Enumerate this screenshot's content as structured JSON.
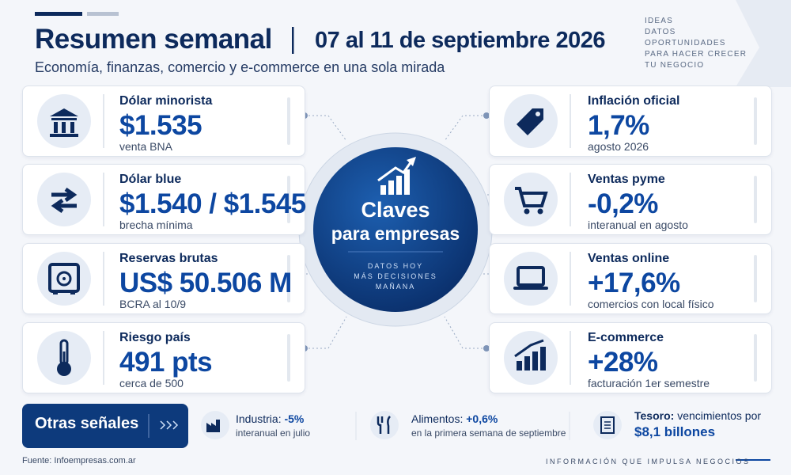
{
  "header": {
    "title": "Resumen semanal",
    "date": "07 al 11 de septiembre 2026",
    "subtitle": "Economía, finanzas, comercio y e-commerce en una sola mirada",
    "tagline": [
      "IDEAS",
      "DATOS",
      "OPORTUNIDADES",
      "PARA HACER CRECER",
      "TU NEGOCIO"
    ]
  },
  "left_cards": [
    {
      "label": "Dólar minorista",
      "value": "$1.535",
      "note": "venta BNA"
    },
    {
      "label": "Dólar blue",
      "value": "$1.540 / $1.545",
      "note": "brecha mínima"
    },
    {
      "label": "Reservas brutas",
      "value": "US$ 50.506 M",
      "note": "BCRA al 10/9"
    },
    {
      "label": "Riesgo país",
      "value": "491 pts",
      "note": "cerca de 500"
    }
  ],
  "right_cards": [
    {
      "label": "Inflación oficial",
      "value": "1,7%",
      "note": "agosto 2026"
    },
    {
      "label": "Ventas pyme",
      "value": "-0,2%",
      "note": "interanual en agosto"
    },
    {
      "label": "Ventas online",
      "value": "+17,6%",
      "note": "comercios con local físico"
    },
    {
      "label": "E-commerce",
      "value": "+28%",
      "note": "facturación 1er semestre"
    }
  ],
  "center": {
    "title": [
      "Claves",
      "para empresas"
    ],
    "subtitle": [
      "DATOS HOY",
      "MÁS DECISIONES",
      "MAÑANA"
    ]
  },
  "other_signals": {
    "label": "Otras señales",
    "items": [
      {
        "label": "Industria:",
        "value": "-5%",
        "note": "interanual en julio"
      },
      {
        "label": "Alimentos:",
        "value": "+0,6%",
        "note": "en la primera semana de septiembre"
      },
      {
        "label": "Tesoro:",
        "text": "vencimientos por",
        "value": "$8,1 billones"
      }
    ]
  },
  "footer": {
    "source": "Fuente: Infoempresas.com.ar",
    "tagline": "INFORMACIÓN QUE IMPULSA NEGOCIOS"
  }
}
